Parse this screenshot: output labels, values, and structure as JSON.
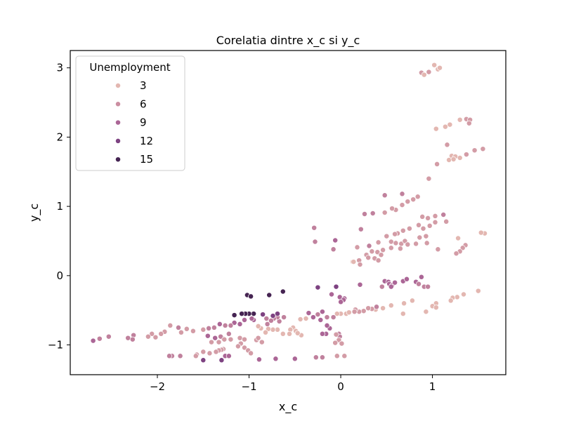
{
  "chart_data": {
    "type": "scatter",
    "title": "Corelatia dintre x_c si y_c",
    "xlabel": "x_c",
    "ylabel": "y_c",
    "xlim": [
      -2.95,
      1.8
    ],
    "ylim": [
      -1.43,
      3.25
    ],
    "xticks": [
      -2,
      -1,
      0,
      1
    ],
    "yticks": [
      -1,
      0,
      1,
      2,
      3
    ],
    "tick_labels_x": [
      "−2",
      "−1",
      "0",
      "1"
    ],
    "tick_labels_y": [
      "−1",
      "0",
      "1",
      "2",
      "3"
    ],
    "grid": false,
    "legend": {
      "title": "Unemployment",
      "placement": "upper-left",
      "entries": [
        {
          "label": "3",
          "value": 3,
          "color": "#e3b7b1"
        },
        {
          "label": "6",
          "value": 6,
          "color": "#cb8ea1"
        },
        {
          "label": "9",
          "value": 9,
          "color": "#ab6696"
        },
        {
          "label": "12",
          "value": 12,
          "color": "#7d4281"
        },
        {
          "label": "15",
          "value": 15,
          "color": "#452452"
        }
      ]
    },
    "hue_name": "Unemployment",
    "points": [
      [
        1.02,
        3.04,
        3
      ],
      [
        1.06,
        2.98,
        3
      ],
      [
        1.08,
        3.0,
        3
      ],
      [
        0.88,
        2.93,
        5
      ],
      [
        0.91,
        2.9,
        3
      ],
      [
        0.96,
        2.94,
        5
      ],
      [
        1.04,
        2.12,
        3
      ],
      [
        1.14,
        2.15,
        3
      ],
      [
        1.19,
        2.18,
        3
      ],
      [
        1.3,
        2.25,
        3
      ],
      [
        1.37,
        2.26,
        5
      ],
      [
        1.41,
        2.25,
        5
      ],
      [
        1.4,
        2.2,
        5
      ],
      [
        1.16,
        1.89,
        5
      ],
      [
        1.21,
        1.73,
        3
      ],
      [
        1.25,
        1.72,
        3
      ],
      [
        1.18,
        1.67,
        3
      ],
      [
        1.23,
        1.68,
        3
      ],
      [
        1.3,
        1.7,
        3
      ],
      [
        1.37,
        1.75,
        5
      ],
      [
        1.46,
        1.81,
        5
      ],
      [
        1.55,
        1.83,
        5
      ],
      [
        1.05,
        1.61,
        5
      ],
      [
        0.96,
        1.4,
        5
      ],
      [
        0.48,
        1.16,
        7
      ],
      [
        0.67,
        1.18,
        7
      ],
      [
        0.79,
        1.1,
        5
      ],
      [
        0.84,
        1.14,
        5
      ],
      [
        0.73,
        1.07,
        5
      ],
      [
        0.67,
        1.02,
        5
      ],
      [
        0.6,
        0.95,
        5
      ],
      [
        0.56,
        0.97,
        5
      ],
      [
        0.48,
        0.91,
        5
      ],
      [
        0.35,
        0.9,
        7
      ],
      [
        0.26,
        0.89,
        7
      ],
      [
        0.89,
        0.85,
        5
      ],
      [
        0.95,
        0.83,
        5
      ],
      [
        1.03,
        0.86,
        5
      ],
      [
        1.12,
        0.88,
        7
      ],
      [
        1.15,
        0.78,
        5
      ],
      [
        1.03,
        0.77,
        5
      ],
      [
        0.97,
        0.72,
        5
      ],
      [
        0.9,
        0.68,
        5
      ],
      [
        0.85,
        0.73,
        5
      ],
      [
        0.75,
        0.68,
        5
      ],
      [
        0.68,
        0.65,
        5
      ],
      [
        0.62,
        0.61,
        5
      ],
      [
        0.59,
        0.6,
        5
      ],
      [
        0.5,
        0.57,
        5
      ],
      [
        0.41,
        0.48,
        5
      ],
      [
        0.55,
        0.49,
        5
      ],
      [
        0.6,
        0.47,
        5
      ],
      [
        0.66,
        0.46,
        5
      ],
      [
        0.7,
        0.5,
        5
      ],
      [
        0.73,
        0.45,
        5
      ],
      [
        0.82,
        0.46,
        5
      ],
      [
        0.86,
        0.55,
        5
      ],
      [
        0.93,
        0.57,
        5
      ],
      [
        0.94,
        0.47,
        5
      ],
      [
        1.06,
        0.38,
        5
      ],
      [
        0.65,
        0.39,
        5
      ],
      [
        0.55,
        0.4,
        5
      ],
      [
        0.46,
        0.37,
        5
      ],
      [
        0.4,
        0.34,
        5
      ],
      [
        0.34,
        0.35,
        5
      ],
      [
        0.31,
        0.43,
        7
      ],
      [
        0.28,
        0.3,
        5
      ],
      [
        0.3,
        0.26,
        5
      ],
      [
        0.37,
        0.25,
        5
      ],
      [
        0.41,
        0.22,
        5
      ],
      [
        0.44,
        0.3,
        5
      ],
      [
        0.2,
        0.22,
        5
      ],
      [
        0.13,
        0.2,
        3
      ],
      [
        0.14,
        0.2,
        3
      ],
      [
        0.18,
        0.41,
        5
      ],
      [
        0.22,
        0.67,
        7
      ],
      [
        -0.29,
        0.69,
        7
      ],
      [
        -0.28,
        0.49,
        7
      ],
      [
        -0.06,
        0.51,
        9
      ],
      [
        -0.08,
        0.38,
        7
      ],
      [
        0.21,
        0.16,
        5
      ],
      [
        1.57,
        0.61,
        3
      ],
      [
        1.53,
        0.62,
        3
      ],
      [
        1.28,
        0.54,
        3
      ],
      [
        1.36,
        0.44,
        5
      ],
      [
        1.33,
        0.4,
        5
      ],
      [
        1.3,
        0.35,
        5
      ],
      [
        1.26,
        0.32,
        5
      ],
      [
        -0.25,
        -0.17,
        12
      ],
      [
        -0.05,
        -0.16,
        12
      ],
      [
        -0.01,
        -0.31,
        9
      ],
      [
        0.04,
        -0.33,
        9
      ],
      [
        0.03,
        -0.35,
        9
      ],
      [
        0.0,
        -0.38,
        9
      ],
      [
        -0.63,
        -0.23,
        15
      ],
      [
        -1.02,
        -0.28,
        15
      ],
      [
        -0.98,
        -0.3,
        15
      ],
      [
        -0.78,
        -0.28,
        15
      ],
      [
        -0.1,
        -0.27,
        9
      ],
      [
        0.21,
        -0.13,
        9
      ],
      [
        0.48,
        -0.08,
        9
      ],
      [
        0.52,
        -0.09,
        9
      ],
      [
        0.53,
        -0.12,
        9
      ],
      [
        0.56,
        -0.14,
        9
      ],
      [
        0.59,
        -0.1,
        9
      ],
      [
        0.68,
        -0.08,
        9
      ],
      [
        0.72,
        -0.05,
        9
      ],
      [
        0.82,
        -0.09,
        9
      ],
      [
        0.88,
        -0.02,
        9
      ],
      [
        0.85,
        -0.12,
        7
      ],
      [
        0.91,
        -0.16,
        7
      ],
      [
        0.95,
        -0.16,
        7
      ],
      [
        0.45,
        -0.16,
        7
      ],
      [
        0.55,
        -0.16,
        9
      ],
      [
        1.5,
        -0.22,
        3
      ],
      [
        1.34,
        -0.27,
        3
      ],
      [
        1.27,
        -0.31,
        3
      ],
      [
        1.22,
        -0.32,
        3
      ],
      [
        1.2,
        -0.36,
        3
      ],
      [
        1.04,
        -0.4,
        3
      ],
      [
        1.0,
        -0.44,
        3
      ],
      [
        0.78,
        -0.36,
        3
      ],
      [
        0.69,
        -0.4,
        3
      ],
      [
        0.55,
        -0.43,
        3
      ],
      [
        0.46,
        -0.47,
        3
      ],
      [
        0.38,
        -0.49,
        3
      ],
      [
        0.34,
        -0.48,
        5
      ],
      [
        0.39,
        -0.45,
        7
      ],
      [
        0.3,
        -0.47,
        5
      ],
      [
        0.25,
        -0.51,
        5
      ],
      [
        0.2,
        -0.52,
        5
      ],
      [
        0.16,
        -0.49,
        5
      ],
      [
        0.15,
        -0.52,
        5
      ],
      [
        0.06,
        -0.55,
        3
      ],
      [
        0.09,
        -0.53,
        3
      ],
      [
        0.0,
        -0.55,
        3
      ],
      [
        -0.04,
        -0.55,
        3
      ],
      [
        0.68,
        -0.55,
        3
      ],
      [
        0.93,
        -0.52,
        3
      ],
      [
        1.04,
        -0.46,
        3
      ],
      [
        -0.08,
        -0.6,
        7
      ],
      [
        -0.15,
        -0.6,
        7
      ],
      [
        -0.25,
        -0.56,
        7
      ],
      [
        -0.3,
        -0.6,
        9
      ],
      [
        -0.35,
        -0.54,
        9
      ],
      [
        -0.2,
        -0.52,
        9
      ],
      [
        -0.22,
        -0.64,
        9
      ],
      [
        -0.12,
        -0.76,
        9
      ],
      [
        -0.15,
        -0.72,
        9
      ],
      [
        -0.16,
        -0.84,
        9
      ],
      [
        -0.2,
        -0.84,
        9
      ],
      [
        -0.02,
        -0.84,
        7
      ],
      [
        -0.01,
        -0.88,
        7
      ],
      [
        -0.05,
        -0.85,
        5
      ],
      [
        -0.02,
        -0.93,
        5
      ],
      [
        -0.06,
        -0.97,
        5
      ],
      [
        0.01,
        -0.98,
        5
      ],
      [
        -0.04,
        -1.16,
        5
      ],
      [
        0.04,
        -1.16,
        5
      ],
      [
        -0.2,
        -1.18,
        7
      ],
      [
        -0.27,
        -1.18,
        7
      ],
      [
        -0.5,
        -1.2,
        9
      ],
      [
        -0.71,
        -1.2,
        9
      ],
      [
        -0.89,
        -1.21,
        9
      ],
      [
        -0.44,
        -0.63,
        3
      ],
      [
        -0.38,
        -0.62,
        3
      ],
      [
        -0.52,
        -0.75,
        3
      ],
      [
        -0.55,
        -0.78,
        3
      ],
      [
        -0.49,
        -0.8,
        3
      ],
      [
        -0.43,
        -0.86,
        3
      ],
      [
        -0.47,
        -0.83,
        3
      ],
      [
        -0.56,
        -0.84,
        3
      ],
      [
        -0.63,
        -0.84,
        3
      ],
      [
        -0.69,
        -0.78,
        3
      ],
      [
        -0.74,
        -0.78,
        3
      ],
      [
        -0.79,
        -0.77,
        3
      ],
      [
        -0.82,
        -0.82,
        3
      ],
      [
        -0.87,
        -0.76,
        3
      ],
      [
        -0.9,
        -0.73,
        3
      ],
      [
        -0.67,
        -0.66,
        7
      ],
      [
        -0.62,
        -0.6,
        7
      ],
      [
        -0.69,
        -0.6,
        7
      ],
      [
        -0.73,
        -0.62,
        7
      ],
      [
        -0.76,
        -0.65,
        7
      ],
      [
        -0.81,
        -0.62,
        7
      ],
      [
        -0.8,
        -0.7,
        7
      ],
      [
        -0.69,
        -0.55,
        12
      ],
      [
        -0.74,
        -0.58,
        12
      ],
      [
        -0.85,
        -0.56,
        12
      ],
      [
        -0.95,
        -0.64,
        9
      ],
      [
        -0.97,
        -0.62,
        9
      ],
      [
        -0.95,
        -0.55,
        15
      ],
      [
        -1.0,
        -0.55,
        15
      ],
      [
        -1.04,
        -0.55,
        15
      ],
      [
        -1.08,
        -0.55,
        15
      ],
      [
        -1.16,
        -0.57,
        15
      ],
      [
        -1.05,
        -0.64,
        9
      ],
      [
        -1.1,
        -0.7,
        9
      ],
      [
        -1.16,
        -0.68,
        9
      ],
      [
        -1.2,
        -0.72,
        7
      ],
      [
        -1.26,
        -0.72,
        7
      ],
      [
        -1.32,
        -0.7,
        9
      ],
      [
        -1.38,
        -0.75,
        7
      ],
      [
        -1.44,
        -0.76,
        7
      ],
      [
        -1.5,
        -0.78,
        5
      ],
      [
        -1.61,
        -0.8,
        5
      ],
      [
        -1.68,
        -0.77,
        5
      ],
      [
        -1.74,
        -0.82,
        5
      ],
      [
        -1.77,
        -0.75,
        7
      ],
      [
        -1.86,
        -0.72,
        5
      ],
      [
        -1.92,
        -0.81,
        5
      ],
      [
        -1.96,
        -0.84,
        5
      ],
      [
        -2.02,
        -0.89,
        5
      ],
      [
        -2.06,
        -0.84,
        5
      ],
      [
        -2.1,
        -0.88,
        5
      ],
      [
        -2.26,
        -0.86,
        7
      ],
      [
        -2.32,
        -0.9,
        7
      ],
      [
        -2.27,
        -0.92,
        7
      ],
      [
        -2.53,
        -0.88,
        7
      ],
      [
        -2.63,
        -0.91,
        7
      ],
      [
        -2.7,
        -0.94,
        9
      ],
      [
        -1.22,
        -0.84,
        7
      ],
      [
        -1.28,
        -0.91,
        7
      ],
      [
        -1.31,
        -0.88,
        7
      ],
      [
        -1.37,
        -0.9,
        9
      ],
      [
        -1.45,
        -0.87,
        9
      ],
      [
        -1.41,
        -0.96,
        5
      ],
      [
        -1.33,
        -0.96,
        5
      ],
      [
        -1.27,
        -0.92,
        5
      ],
      [
        -1.2,
        -0.92,
        5
      ],
      [
        -1.1,
        -0.9,
        5
      ],
      [
        -1.05,
        -0.92,
        5
      ],
      [
        -0.92,
        -0.93,
        5
      ],
      [
        -0.9,
        -0.9,
        5
      ],
      [
        -0.86,
        -0.96,
        5
      ],
      [
        -1.09,
        -0.98,
        5
      ],
      [
        -1.12,
        -1.02,
        5
      ],
      [
        -1.05,
        -1.04,
        5
      ],
      [
        -1.01,
        -1.08,
        5
      ],
      [
        -0.98,
        -1.12,
        5
      ],
      [
        -1.28,
        -1.06,
        5
      ],
      [
        -1.3,
        -1.07,
        5
      ],
      [
        -1.33,
        -1.08,
        5
      ],
      [
        -1.36,
        -1.1,
        5
      ],
      [
        -1.43,
        -1.12,
        5
      ],
      [
        -1.5,
        -1.1,
        5
      ],
      [
        -1.57,
        -1.14,
        5
      ],
      [
        -1.58,
        -1.16,
        5
      ],
      [
        -1.75,
        -1.16,
        7
      ],
      [
        -1.84,
        -1.16,
        7
      ],
      [
        -1.87,
        -1.16,
        7
      ],
      [
        -1.5,
        -1.22,
        12
      ],
      [
        -1.3,
        -1.22,
        12
      ],
      [
        -1.26,
        -1.16,
        9
      ],
      [
        -1.22,
        -1.16,
        9
      ]
    ]
  }
}
